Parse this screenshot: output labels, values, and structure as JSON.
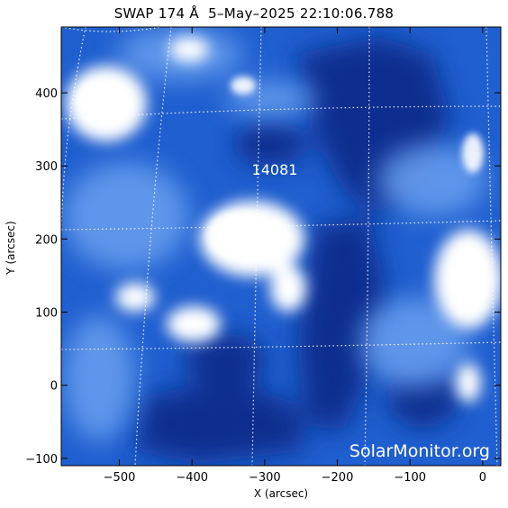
{
  "title": "SWAP 174 Å  5–May–2025 22:10:06.788",
  "active_region_label": "14081",
  "watermark": "SolarMonitor.org",
  "x_axis": {
    "label": "X (arcsec)",
    "range": [
      -580,
      25
    ],
    "ticks": [
      {
        "value": -500,
        "label": "−500"
      },
      {
        "value": -400,
        "label": "−400"
      },
      {
        "value": -300,
        "label": "−300"
      },
      {
        "value": -200,
        "label": "−200"
      },
      {
        "value": -100,
        "label": "−100"
      },
      {
        "value": 0,
        "label": "0"
      }
    ]
  },
  "y_axis": {
    "label": "Y (arcsec)",
    "range": [
      -110,
      490
    ],
    "ticks": [
      {
        "value": -100,
        "label": "−100"
      },
      {
        "value": 0,
        "label": "0"
      },
      {
        "value": 100,
        "label": "100"
      },
      {
        "value": 200,
        "label": "200"
      },
      {
        "value": 300,
        "label": "300"
      },
      {
        "value": 400,
        "label": "400"
      }
    ]
  },
  "colors": {
    "background_blue": "#1f5fcf",
    "dark_blue": "#0a2f8f",
    "bright": "#ffffff",
    "grid": "#ffffff"
  }
}
